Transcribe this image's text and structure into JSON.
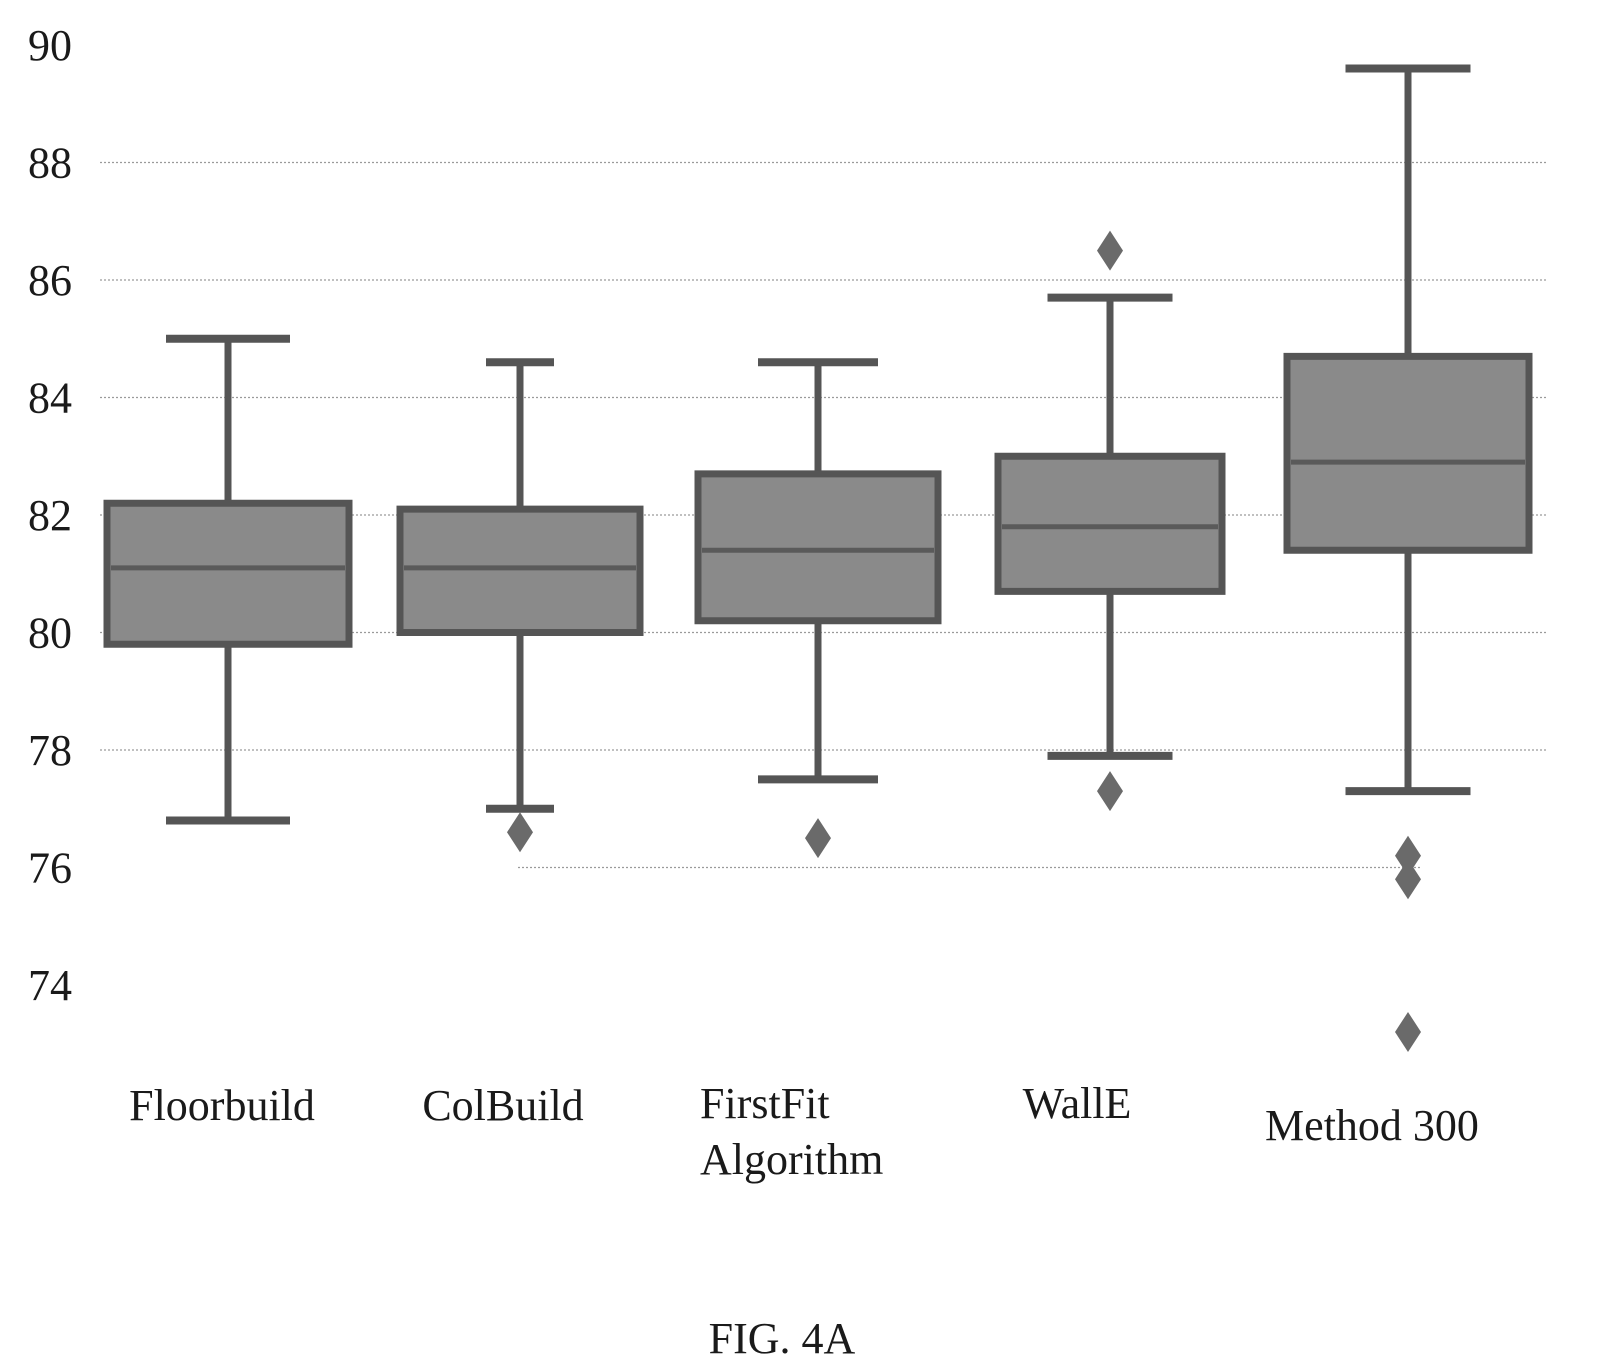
{
  "caption": "FIG. 4A",
  "chart_data": {
    "type": "box",
    "title": "",
    "xlabel": "",
    "ylabel": "",
    "y_ticks": [
      90,
      88,
      86,
      84,
      82,
      80,
      78,
      76,
      74
    ],
    "grid": true,
    "categories": [
      {
        "label_lines": [
          "Floorbuild"
        ]
      },
      {
        "label_lines": [
          "ColBuild"
        ]
      },
      {
        "label_lines": [
          "FirstFit",
          "Algorithm"
        ]
      },
      {
        "label_lines": [
          "WallE"
        ]
      },
      {
        "label_lines": [
          "Method 300"
        ]
      }
    ],
    "boxes": [
      {
        "whisker_low": 76.8,
        "q1": 79.8,
        "median": 81.1,
        "q3": 82.2,
        "whisker_high": 85.0,
        "outliers": []
      },
      {
        "whisker_low": 77.0,
        "q1": 80.0,
        "median": 81.1,
        "q3": 82.1,
        "whisker_high": 84.6,
        "outliers": [
          76.6
        ]
      },
      {
        "whisker_low": 77.5,
        "q1": 80.2,
        "median": 81.4,
        "q3": 82.7,
        "whisker_high": 84.6,
        "outliers": [
          76.5
        ]
      },
      {
        "whisker_low": 77.9,
        "q1": 80.7,
        "median": 81.8,
        "q3": 83.0,
        "whisker_high": 85.7,
        "outliers": [
          86.5,
          77.3
        ]
      },
      {
        "whisker_low": 77.3,
        "q1": 81.4,
        "median": 82.9,
        "q3": 84.7,
        "whisker_high": 89.6,
        "outliers": [
          76.2,
          75.8,
          73.2
        ]
      }
    ]
  }
}
